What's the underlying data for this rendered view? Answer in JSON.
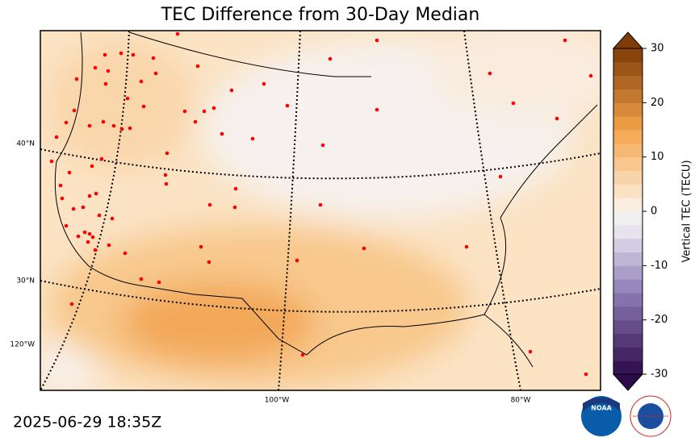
{
  "title": "TEC Difference from 30-Day Median",
  "map": {
    "lat_labels": [
      "40°N",
      "30°N"
    ],
    "lon_labels": [
      "120°W",
      "100°W",
      "80°W"
    ]
  },
  "colorbar": {
    "label": "Vertical TEC (TECU)",
    "lim": [
      -30,
      30
    ],
    "ticks": [
      -30,
      -20,
      -10,
      0,
      10,
      20,
      30
    ]
  },
  "timestamp": "2025-06-29 18:35Z",
  "logo": {
    "noaa": "NOAA",
    "nws": "NATIONAL WEATHER SERVICE"
  }
}
